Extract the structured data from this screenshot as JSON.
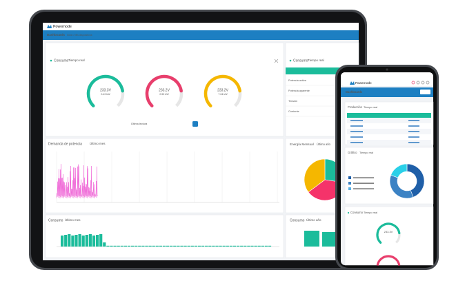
{
  "tablet": {
    "brand": "Powernode",
    "nav": "Dashboards",
    "breadcrumb": "Inicio / Mis dispositivos",
    "consumo": {
      "title": "Consumo",
      "subtitle": "Tiempo real",
      "last_read": "Última lectura",
      "gauges": [
        {
          "value": "233.3V",
          "power": "0.49 kW"
        },
        {
          "value": "233.2V",
          "power": "0.52 kW"
        },
        {
          "value": "233.2V",
          "power": "7.04 kW"
        }
      ]
    },
    "side": {
      "title": "Consumo",
      "subtitle": "Tiempo real",
      "rows": [
        "Potencia activa",
        "Potencia aparente",
        "Tensión",
        "Corriente"
      ]
    },
    "demanda": {
      "title": "Demanda de potencia",
      "subtitle": "Último mes"
    },
    "energia": {
      "title": "Energía Mensual",
      "subtitle": "Último año"
    },
    "consumo_mes": {
      "title": "Consumo",
      "subtitle": "Último mes"
    },
    "consumo_anio": {
      "title": "Consumo",
      "subtitle": "Último año"
    }
  },
  "phone": {
    "brand": "Powernode",
    "nav": "Dashboards",
    "produccion": {
      "title": "Producción",
      "subtitle": "Tiempo real"
    },
    "grafico": {
      "title": "Gráfico",
      "subtitle": "Tiempo real"
    },
    "consumo": {
      "title": "Consumo",
      "subtitle": "Tiempo real",
      "gauge": "233.3V"
    }
  }
}
